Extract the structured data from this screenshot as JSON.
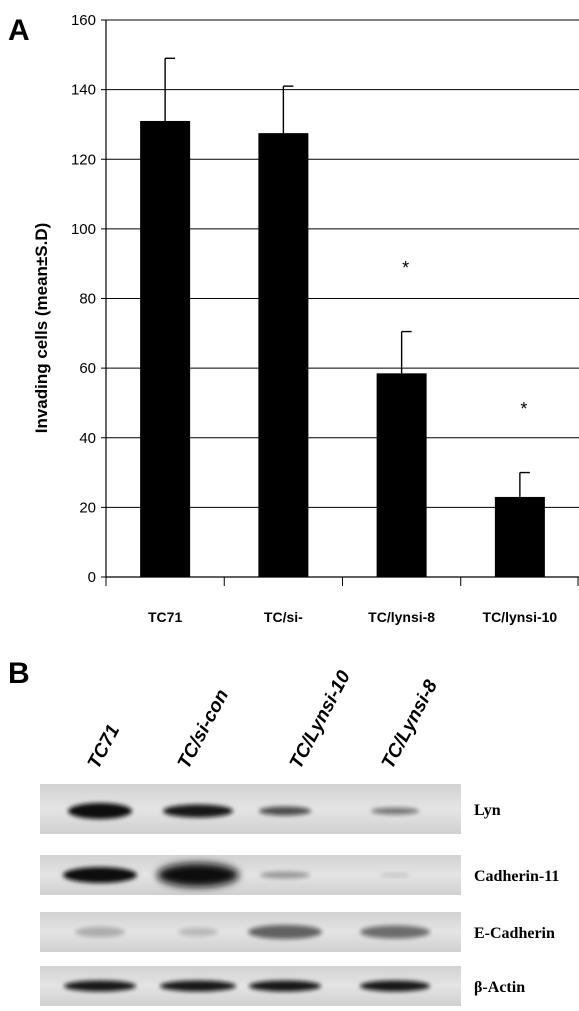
{
  "panel_a_label": "A",
  "panel_b_label": "B",
  "chart_data": {
    "type": "bar",
    "title": "",
    "xlabel": "",
    "ylabel": "Invading cells  (mean±S.D)",
    "categories": [
      "TC71",
      "TC/si-",
      "TC/lynsi-8",
      "TC/lynsi-10"
    ],
    "values": [
      131,
      127.5,
      58.5,
      23
    ],
    "errors": [
      18,
      13.5,
      12,
      7
    ],
    "significance": [
      "",
      "",
      "*",
      "*"
    ],
    "ylim": [
      0,
      160
    ],
    "yticks": [
      "0",
      "20",
      "40",
      "60",
      "80",
      "100",
      "120",
      "140",
      "160"
    ],
    "grid": true,
    "bar_color": "#000000"
  },
  "blot": {
    "lanes": [
      "TC71",
      "TC/si-con",
      "TC/Lynsi-10",
      "TC/Lynsi-8"
    ],
    "rows": [
      {
        "label": "Lyn"
      },
      {
        "label": "Cadherin-11"
      },
      {
        "label": "E-Cadherin"
      },
      {
        "label": "β-Actin"
      }
    ]
  }
}
